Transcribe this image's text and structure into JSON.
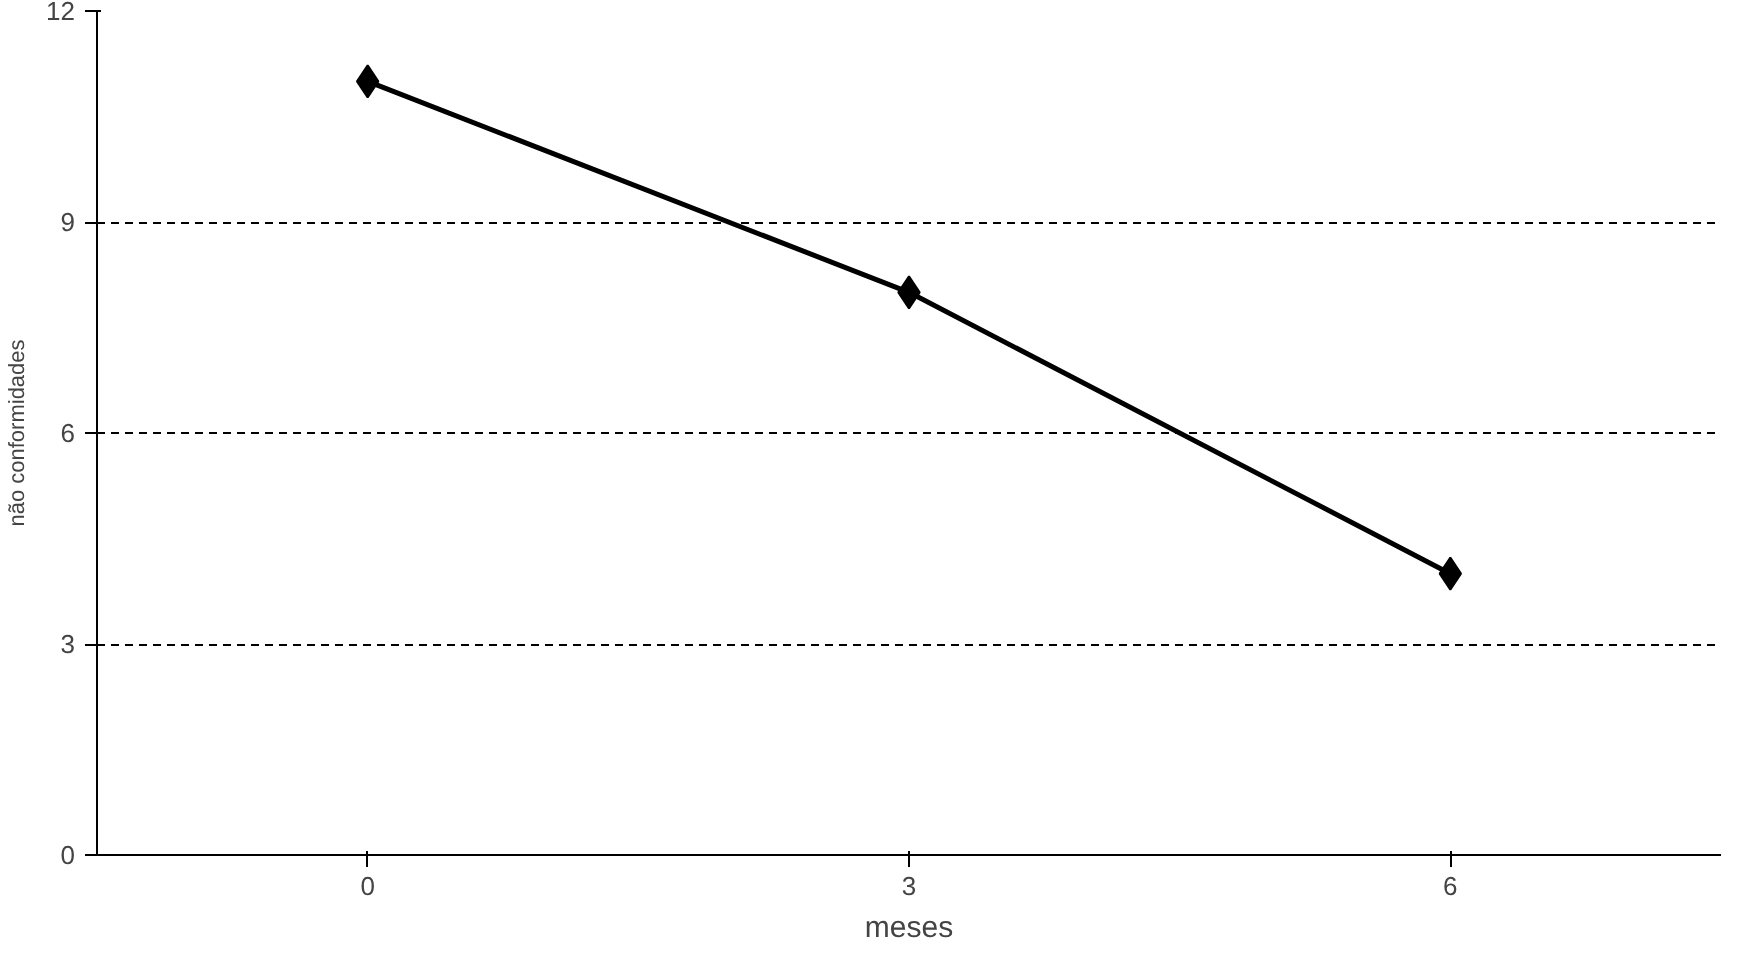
{
  "chart_data": {
    "type": "line",
    "categories": [
      "0",
      "3",
      "6"
    ],
    "series": [
      {
        "color": "#000000",
        "values": [
          11,
          8,
          4
        ]
      }
    ],
    "xlabel": "meses",
    "ylabel": "não conformidades",
    "ylim": [
      0,
      12
    ],
    "yticks": [
      0,
      3,
      6,
      9,
      12
    ],
    "grid": "y",
    "marker": "diamond",
    "line_style": "solid"
  }
}
